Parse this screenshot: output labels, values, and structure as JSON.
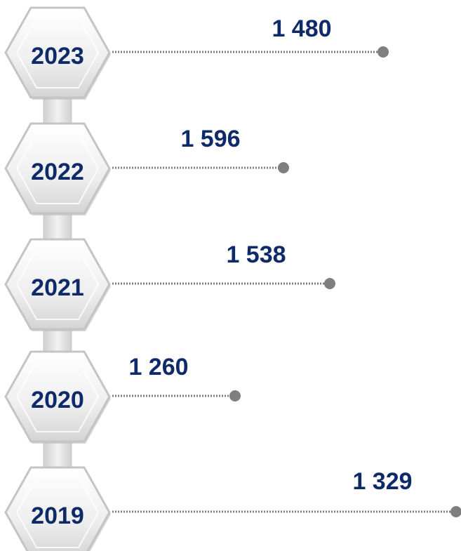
{
  "timeline": {
    "items": [
      {
        "year": "2023",
        "value": "1 480"
      },
      {
        "year": "2022",
        "value": "1 596"
      },
      {
        "year": "2021",
        "value": "1 538"
      },
      {
        "year": "2020",
        "value": "1 260"
      },
      {
        "year": "2019",
        "value": "1 329"
      }
    ]
  }
}
